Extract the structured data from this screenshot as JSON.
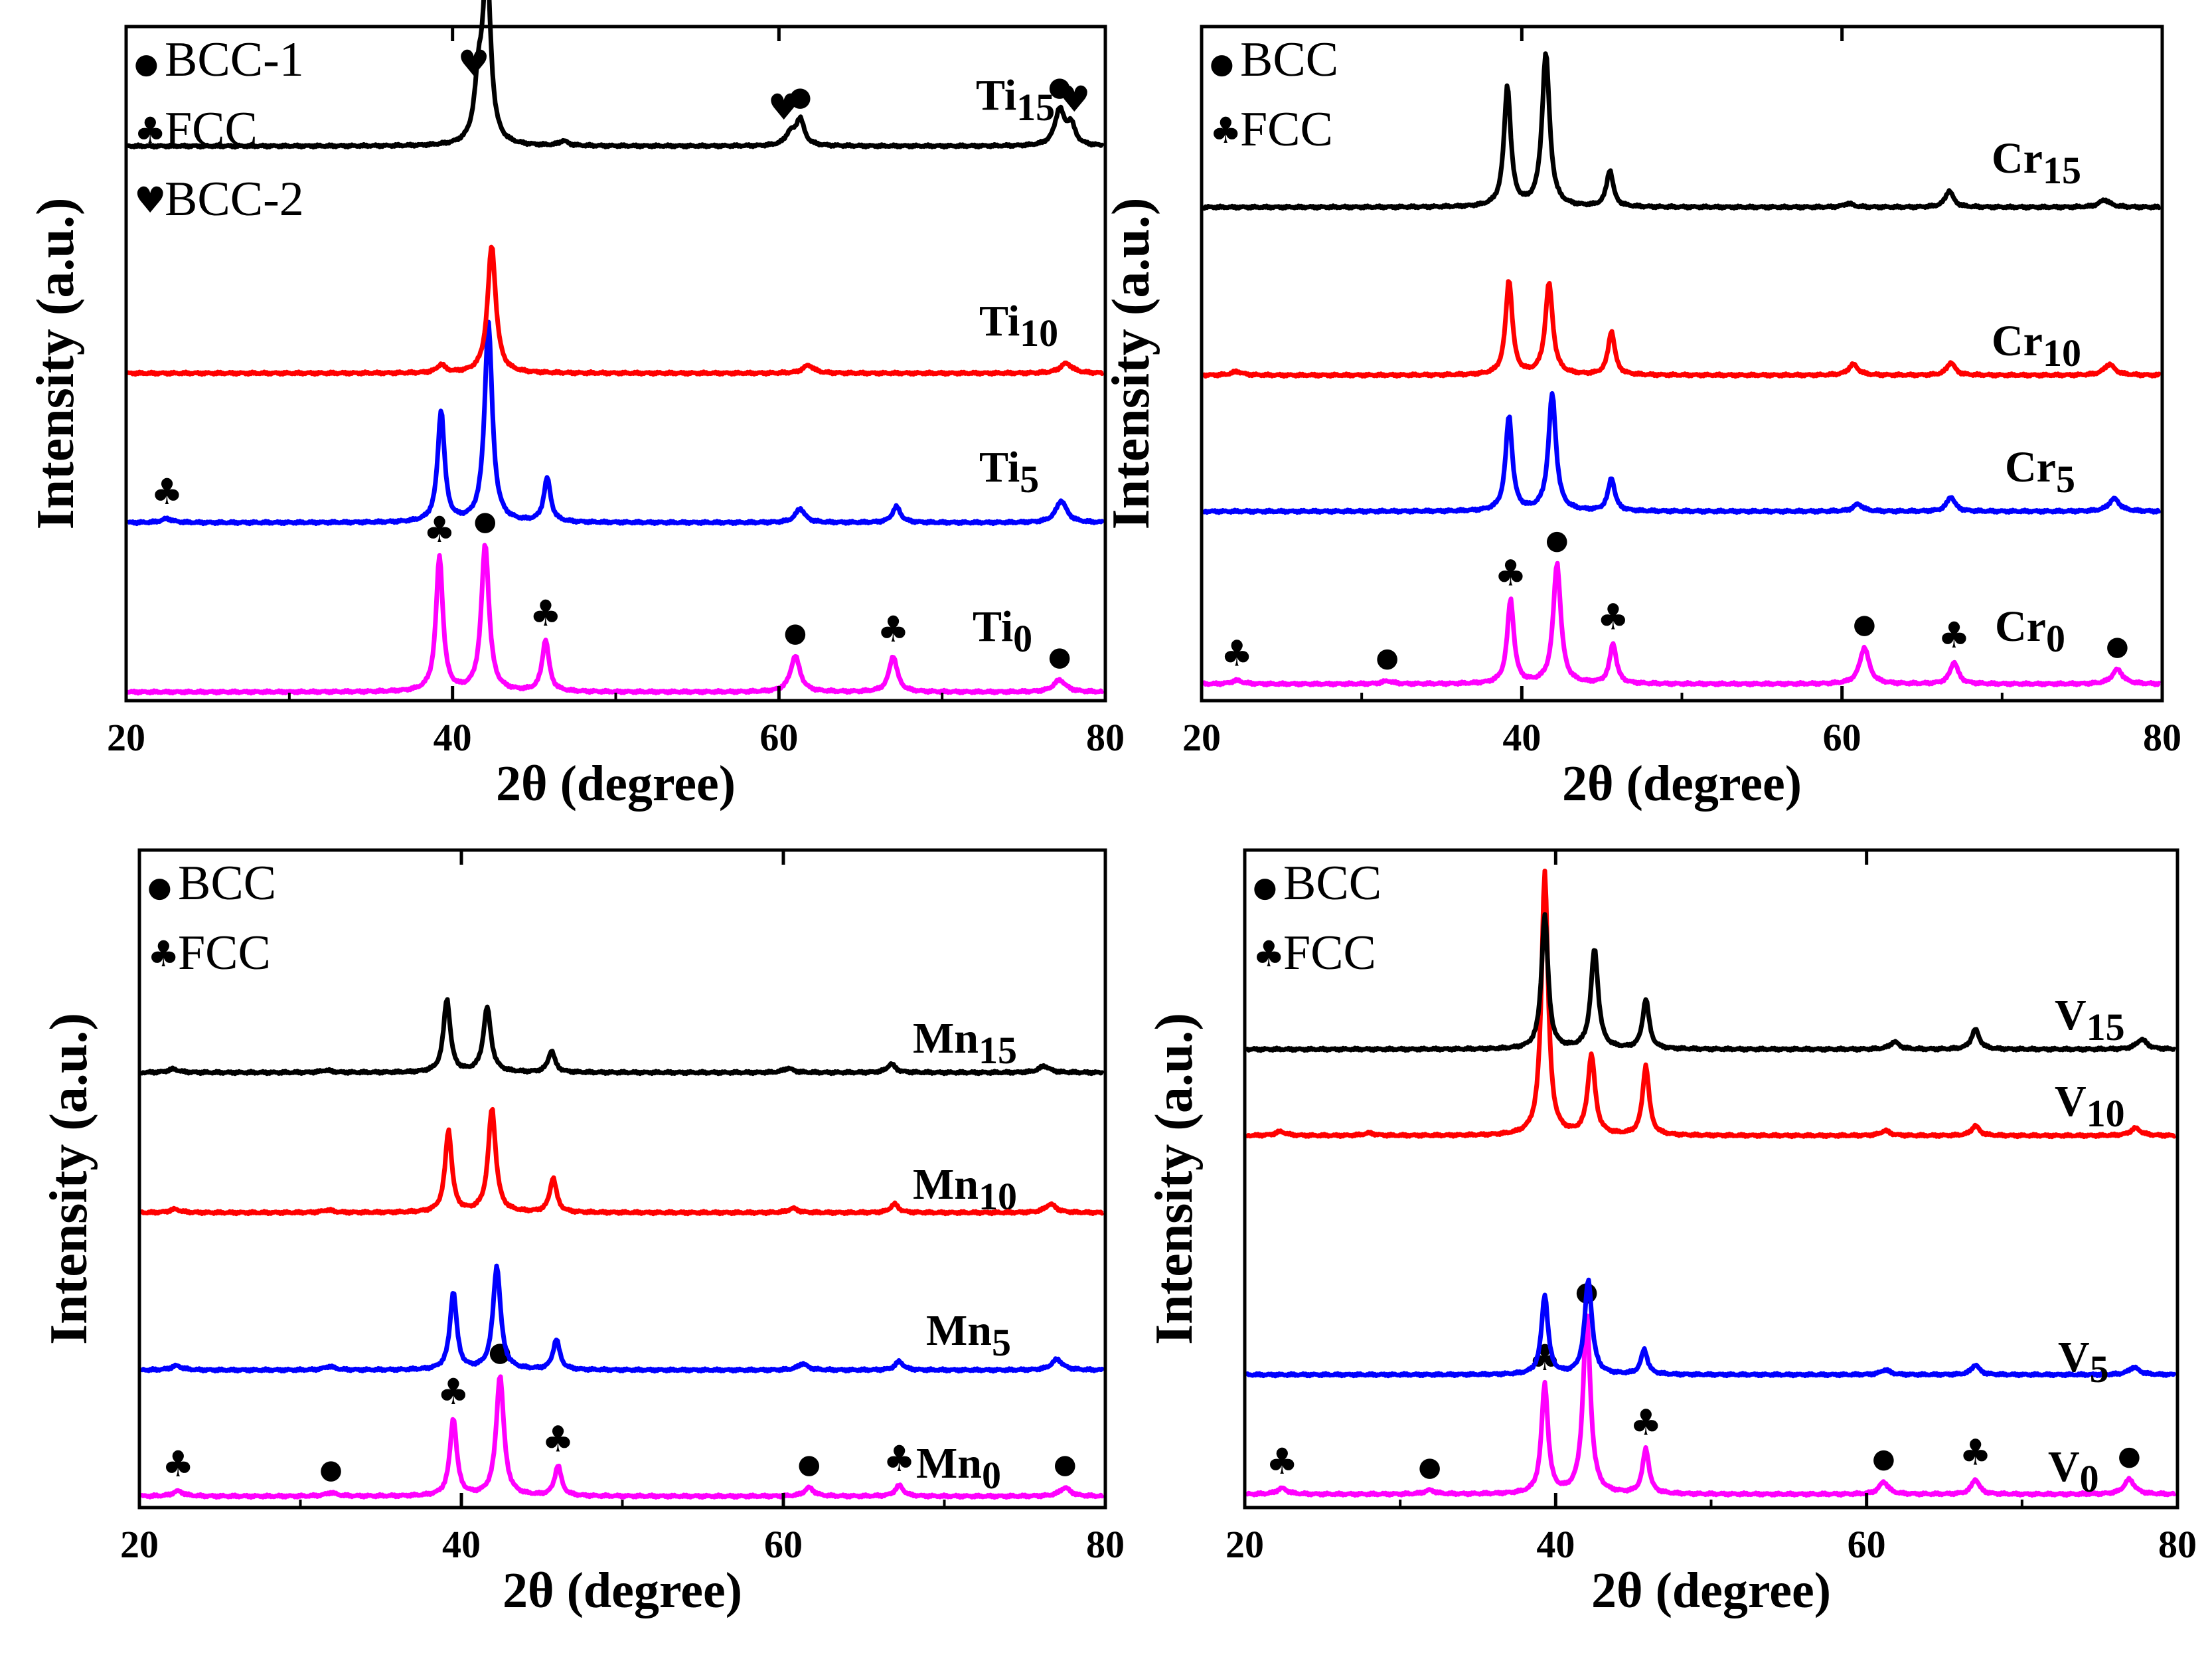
{
  "figure": {
    "panels": 4,
    "layout": "2x2"
  },
  "symbols": {
    "bcc": "●",
    "fcc": "♣",
    "bcc2": "♥"
  },
  "chart_data": [
    {
      "type": "line",
      "id": "ti",
      "title": "",
      "xlabel_main": "2θ",
      "xlabel_paren": "(degree)",
      "ylabel": "Intensity (a.u.)",
      "xlim": [
        20,
        80
      ],
      "x_major_ticks": [
        20,
        40,
        60,
        80
      ],
      "x_minor_ticks": [
        30,
        50,
        70
      ],
      "y_ticks": "none",
      "grid": false,
      "legend": {
        "placement": "top-left",
        "entries": [
          {
            "symbol": "●",
            "label": "BCC-1"
          },
          {
            "symbol": "♣",
            "label": "FCC"
          },
          {
            "symbol": "♥",
            "label": "BCC-2"
          }
        ]
      },
      "series": [
        {
          "name": "Ti",
          "sub": "15",
          "color": "#ff00ff",
          "offset": 3,
          "peaks": [
            [
              39.2,
              3.4,
              0.25
            ],
            [
              42.0,
              3.7,
              0.28
            ],
            [
              45.7,
              1.3,
              0.25
            ],
            [
              61.0,
              0.9,
              0.35
            ],
            [
              67.0,
              0.9,
              0.3
            ],
            [
              77.2,
              0.3,
              0.45
            ]
          ],
          "markers": [
            {
              "x": 39.2,
              "symbol": "♣"
            },
            {
              "x": 42.0,
              "symbol": "●"
            },
            {
              "x": 45.7,
              "symbol": "♣"
            },
            {
              "x": 61.0,
              "symbol": "●"
            },
            {
              "x": 67.0,
              "symbol": "♣"
            },
            {
              "x": 77.2,
              "symbol": "●"
            }
          ]
        },
        {
          "name": "Ti",
          "sub": "10",
          "color": "#0000ff",
          "offset": 2,
          "peaks": [
            [
              22.5,
              0.1,
              0.4
            ],
            [
              39.3,
              2.8,
              0.25
            ],
            [
              42.2,
              5.0,
              0.28
            ],
            [
              45.8,
              1.1,
              0.25
            ],
            [
              61.3,
              0.35,
              0.35
            ],
            [
              67.2,
              0.4,
              0.3
            ],
            [
              77.3,
              0.55,
              0.4
            ]
          ],
          "markers": [
            {
              "x": 22.5,
              "symbol": "♣"
            }
          ]
        },
        {
          "name": "Ti",
          "sub": "5",
          "color": "#ff0000",
          "offset": 1,
          "peaks": [
            [
              39.3,
              0.2,
              0.3
            ],
            [
              42.4,
              3.2,
              0.3
            ],
            [
              61.8,
              0.2,
              0.4
            ],
            [
              77.6,
              0.25,
              0.45
            ]
          ],
          "markers": []
        },
        {
          "name": "Ti",
          "sub": "0",
          "color": "#000000",
          "offset": 0,
          "peaks": [
            [
              41.6,
              1.4,
              0.3
            ],
            [
              42.1,
              4.4,
              0.28
            ],
            [
              46.8,
              0.12,
              0.3
            ],
            [
              60.7,
              0.3,
              0.35
            ],
            [
              61.3,
              0.65,
              0.3
            ],
            [
              77.2,
              0.9,
              0.35
            ],
            [
              77.9,
              0.5,
              0.3
            ]
          ],
          "markers": [
            {
              "x": 41.3,
              "symbol": "♥"
            },
            {
              "x": 42.1,
              "symbol": "●"
            },
            {
              "x": 60.3,
              "symbol": "♥"
            },
            {
              "x": 61.3,
              "symbol": "●"
            },
            {
              "x": 77.2,
              "symbol": "●"
            },
            {
              "x": 78.1,
              "symbol": "♥"
            }
          ]
        }
      ]
    },
    {
      "type": "line",
      "id": "cr",
      "title": "",
      "xlabel_main": "2θ",
      "xlabel_paren": "(degree)",
      "ylabel": "Intensity (a.u.)",
      "xlim": [
        20,
        80
      ],
      "x_major_ticks": [
        20,
        40,
        60,
        80
      ],
      "x_minor_ticks": [
        30,
        50,
        70
      ],
      "y_ticks": "none",
      "grid": false,
      "legend": {
        "placement": "top-left",
        "entries": [
          {
            "symbol": "●",
            "label": "BCC"
          },
          {
            "symbol": "♣",
            "label": "FCC"
          }
        ]
      },
      "series": [
        {
          "name": "Cr",
          "sub": "15",
          "color": "#ff00ff",
          "offset": 3,
          "peaks": [
            [
              22.2,
              0.1,
              0.4
            ],
            [
              31.6,
              0.08,
              0.4
            ],
            [
              39.3,
              2.3,
              0.25
            ],
            [
              42.2,
              3.3,
              0.28
            ],
            [
              45.7,
              1.1,
              0.25
            ],
            [
              61.4,
              1.0,
              0.35
            ],
            [
              67.0,
              0.6,
              0.3
            ],
            [
              77.2,
              0.4,
              0.4
            ]
          ],
          "markers": [
            {
              "x": 22.2,
              "symbol": "♣"
            },
            {
              "x": 31.6,
              "symbol": "●"
            },
            {
              "x": 39.3,
              "symbol": "♣"
            },
            {
              "x": 42.2,
              "symbol": "●"
            },
            {
              "x": 45.7,
              "symbol": "♣"
            },
            {
              "x": 61.4,
              "symbol": "●"
            },
            {
              "x": 67.0,
              "symbol": "♣"
            },
            {
              "x": 77.2,
              "symbol": "●"
            }
          ]
        },
        {
          "name": "Cr",
          "sub": "10",
          "color": "#0000ff",
          "offset": 2,
          "peaks": [
            [
              39.2,
              2.6,
              0.25
            ],
            [
              41.9,
              3.2,
              0.28
            ],
            [
              45.6,
              0.9,
              0.25
            ],
            [
              61.0,
              0.2,
              0.35
            ],
            [
              66.8,
              0.4,
              0.3
            ],
            [
              77.0,
              0.35,
              0.4
            ]
          ],
          "markers": []
        },
        {
          "name": "Cr",
          "sub": "5",
          "color": "#ff0000",
          "offset": 1,
          "peaks": [
            [
              22.2,
              0.1,
              0.4
            ],
            [
              39.2,
              2.6,
              0.25
            ],
            [
              41.7,
              2.5,
              0.28
            ],
            [
              45.6,
              1.2,
              0.25
            ],
            [
              60.7,
              0.3,
              0.35
            ],
            [
              66.8,
              0.35,
              0.3
            ],
            [
              76.7,
              0.3,
              0.4
            ]
          ],
          "markers": []
        },
        {
          "name": "Cr",
          "sub": "0",
          "color": "#000000",
          "offset": 0,
          "peaks": [
            [
              39.1,
              3.3,
              0.25
            ],
            [
              41.5,
              4.2,
              0.28
            ],
            [
              45.5,
              1.0,
              0.25
            ],
            [
              60.4,
              0.1,
              0.35
            ],
            [
              66.7,
              0.45,
              0.3
            ],
            [
              76.4,
              0.2,
              0.4
            ]
          ],
          "markers": []
        }
      ]
    },
    {
      "type": "line",
      "id": "mn",
      "title": "",
      "xlabel_main": "2θ",
      "xlabel_paren": "(degree)",
      "ylabel": "Intensity (a.u.)",
      "xlim": [
        20,
        80
      ],
      "x_major_ticks": [
        20,
        40,
        60,
        80
      ],
      "x_minor_ticks": [
        30,
        50,
        70
      ],
      "y_ticks": "none",
      "grid": false,
      "legend": {
        "placement": "top-left",
        "entries": [
          {
            "symbol": "●",
            "label": "BCC"
          },
          {
            "symbol": "♣",
            "label": "FCC"
          }
        ]
      },
      "series": [
        {
          "name": "Mn",
          "sub": "15",
          "color": "#ff00ff",
          "offset": 3,
          "peaks": [
            [
              22.4,
              0.12,
              0.4
            ],
            [
              31.9,
              0.08,
              0.4
            ],
            [
              39.5,
              1.8,
              0.25
            ],
            [
              42.4,
              2.8,
              0.28
            ],
            [
              46.0,
              0.7,
              0.25
            ],
            [
              61.6,
              0.2,
              0.35
            ],
            [
              67.2,
              0.25,
              0.3
            ],
            [
              77.5,
              0.2,
              0.4
            ]
          ],
          "markers": [
            {
              "x": 22.4,
              "symbol": "♣"
            },
            {
              "x": 31.9,
              "symbol": "●"
            },
            {
              "x": 39.5,
              "symbol": "♣"
            },
            {
              "x": 42.4,
              "symbol": "●"
            },
            {
              "x": 46.0,
              "symbol": "♣"
            },
            {
              "x": 61.6,
              "symbol": "●"
            },
            {
              "x": 67.2,
              "symbol": "♣"
            },
            {
              "x": 77.5,
              "symbol": "●"
            }
          ]
        },
        {
          "name": "Mn",
          "sub": "10",
          "color": "#0000ff",
          "offset": 2,
          "peaks": [
            [
              22.3,
              0.1,
              0.4
            ],
            [
              31.8,
              0.08,
              0.4
            ],
            [
              39.5,
              1.8,
              0.25
            ],
            [
              42.2,
              2.4,
              0.28
            ],
            [
              45.9,
              0.7,
              0.25
            ],
            [
              61.2,
              0.15,
              0.35
            ],
            [
              67.2,
              0.2,
              0.3
            ],
            [
              77.0,
              0.25,
              0.4
            ]
          ],
          "markers": []
        },
        {
          "name": "Mn",
          "sub": "5",
          "color": "#ff0000",
          "offset": 1,
          "peaks": [
            [
              22.2,
              0.08,
              0.4
            ],
            [
              31.7,
              0.06,
              0.4
            ],
            [
              39.2,
              1.9,
              0.25
            ],
            [
              41.9,
              2.4,
              0.28
            ],
            [
              45.7,
              0.8,
              0.25
            ],
            [
              60.6,
              0.1,
              0.35
            ],
            [
              66.9,
              0.2,
              0.3
            ],
            [
              76.6,
              0.2,
              0.4
            ]
          ],
          "markers": []
        },
        {
          "name": "Mn",
          "sub": "0",
          "color": "#000000",
          "offset": 0,
          "peaks": [
            [
              22.1,
              0.08,
              0.4
            ],
            [
              31.6,
              0.05,
              0.4
            ],
            [
              39.1,
              1.7,
              0.25
            ],
            [
              41.6,
              1.5,
              0.28
            ],
            [
              45.6,
              0.5,
              0.25
            ],
            [
              60.3,
              0.1,
              0.35
            ],
            [
              66.7,
              0.2,
              0.3
            ],
            [
              76.2,
              0.15,
              0.4
            ]
          ],
          "markers": []
        }
      ]
    },
    {
      "type": "line",
      "id": "v",
      "title": "",
      "xlabel_main": "2θ",
      "xlabel_paren": "(degree)",
      "ylabel": "Intensity (a.u.)",
      "xlim": [
        20,
        80
      ],
      "x_major_ticks": [
        20,
        40,
        60,
        80
      ],
      "x_minor_ticks": [
        30,
        50,
        70
      ],
      "y_ticks": "none",
      "grid": false,
      "legend": {
        "placement": "top-left",
        "entries": [
          {
            "symbol": "●",
            "label": "BCC"
          },
          {
            "symbol": "♣",
            "label": "FCC"
          }
        ]
      },
      "series": [
        {
          "name": "V",
          "sub": "15",
          "color": "#ff00ff",
          "offset": 3,
          "peaks": [
            [
              22.4,
              0.12,
              0.4
            ],
            [
              31.9,
              0.08,
              0.4
            ],
            [
              39.3,
              2.2,
              0.25
            ],
            [
              42.0,
              3.6,
              0.28
            ],
            [
              45.8,
              0.9,
              0.25
            ],
            [
              61.1,
              0.25,
              0.35
            ],
            [
              67.0,
              0.3,
              0.3
            ],
            [
              76.9,
              0.3,
              0.4
            ]
          ],
          "markers": [
            {
              "x": 22.4,
              "symbol": "♣"
            },
            {
              "x": 31.9,
              "symbol": "●"
            },
            {
              "x": 39.3,
              "symbol": "♣"
            },
            {
              "x": 42.0,
              "symbol": "●"
            },
            {
              "x": 45.8,
              "symbol": "♣"
            },
            {
              "x": 61.1,
              "symbol": "●"
            },
            {
              "x": 67.0,
              "symbol": "♣"
            },
            {
              "x": 76.9,
              "symbol": "●"
            }
          ]
        },
        {
          "name": "V",
          "sub": "10",
          "color": "#0000ff",
          "offset": 2,
          "peaks": [
            [
              39.3,
              1.6,
              0.25
            ],
            [
              42.1,
              1.9,
              0.28
            ],
            [
              45.7,
              0.5,
              0.25
            ],
            [
              61.2,
              0.1,
              0.35
            ],
            [
              67.0,
              0.2,
              0.3
            ],
            [
              77.2,
              0.15,
              0.4
            ]
          ],
          "markers": []
        },
        {
          "name": "V",
          "sub": "5",
          "color": "#ff0000",
          "offset": 1,
          "peaks": [
            [
              22.3,
              0.08,
              0.4
            ],
            [
              28.0,
              0.05,
              0.4
            ],
            [
              39.3,
              5.3,
              0.25
            ],
            [
              42.3,
              1.6,
              0.28
            ],
            [
              45.8,
              1.4,
              0.25
            ],
            [
              61.2,
              0.1,
              0.35
            ],
            [
              67.0,
              0.2,
              0.3
            ],
            [
              77.3,
              0.15,
              0.4
            ]
          ],
          "markers": []
        },
        {
          "name": "V",
          "sub": "0",
          "color": "#000000",
          "offset": 0,
          "peaks": [
            [
              39.3,
              2.7,
              0.25
            ],
            [
              42.5,
              2.0,
              0.28
            ],
            [
              45.8,
              1.0,
              0.25
            ],
            [
              61.8,
              0.15,
              0.35
            ],
            [
              67.0,
              0.4,
              0.3
            ],
            [
              77.7,
              0.2,
              0.4
            ]
          ],
          "markers": []
        }
      ]
    }
  ]
}
